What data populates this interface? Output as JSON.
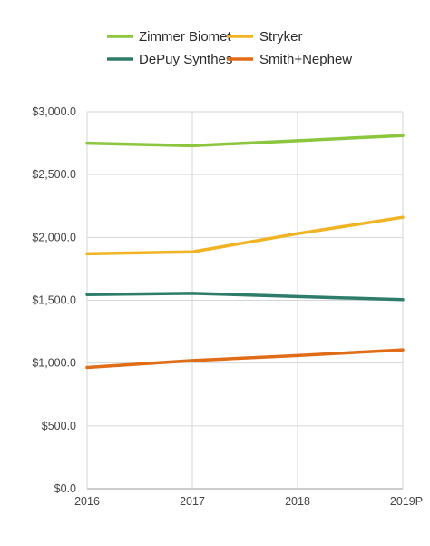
{
  "chart_data": {
    "type": "line",
    "title": "",
    "xlabel": "",
    "ylabel": "",
    "categories": [
      "2016",
      "2017",
      "2018",
      "2019P"
    ],
    "ylim": [
      0,
      3000
    ],
    "y_ticks": [
      0,
      500,
      1000,
      1500,
      2000,
      2500,
      3000
    ],
    "y_tick_labels": [
      "$0.0",
      "$500.0",
      "$1,000.0",
      "$1,500.0",
      "$2,000.0",
      "$2,500.0",
      "$3,000.0"
    ],
    "grid": true,
    "legend_position": "top-center",
    "series": [
      {
        "name": "Zimmer Biomet",
        "color": "#8cc63f",
        "values": [
          2750,
          2730,
          2770,
          2810
        ]
      },
      {
        "name": "Stryker",
        "color": "#f0b323",
        "values": [
          1870,
          1885,
          2030,
          2160
        ]
      },
      {
        "name": "DePuy Synthes",
        "color": "#2e7d6a",
        "values": [
          1545,
          1555,
          1530,
          1505
        ]
      },
      {
        "name": "Smith+Nephew",
        "color": "#e06c17",
        "values": [
          965,
          1020,
          1060,
          1105
        ]
      }
    ]
  }
}
